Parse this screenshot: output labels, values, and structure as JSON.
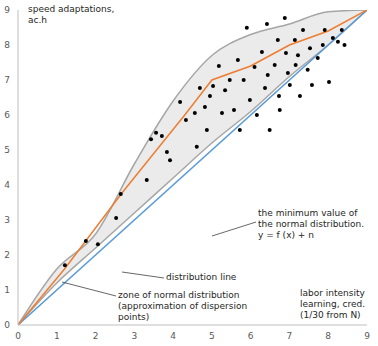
{
  "chart_data": {
    "type": "scatter",
    "y_label": "speed adaptations, ac.h",
    "x_label": "labor intensity learning, cred. (1/30 from N)",
    "xlim": [
      0,
      9
    ],
    "ylim": [
      0,
      9
    ],
    "xticks": [
      0,
      1,
      2,
      3,
      4,
      5,
      6,
      7,
      8,
      9
    ],
    "yticks": [
      0,
      1,
      2,
      3,
      4,
      5,
      6,
      7,
      8,
      9
    ],
    "grid": false,
    "annotations": [
      "the minimum value of the normal distribution. y = f (x) + n",
      "distribution line",
      "zone of normal distribution (approximation of dispersion points)"
    ],
    "series": [
      {
        "type": "area",
        "color": "#a6a6a6",
        "x": [
          0,
          1,
          2,
          3,
          4,
          5,
          6,
          7,
          8,
          9
        ],
        "low": [
          0,
          1.2,
          2.2,
          3.2,
          4.2,
          5.2,
          6.1,
          7.1,
          8.0,
          9
        ],
        "values": [
          0,
          1.6,
          2.6,
          4.6,
          6.4,
          7.7,
          8.3,
          8.6,
          8.95,
          9
        ]
      },
      {
        "type": "line",
        "color": "#5b9bd5",
        "x": [
          0,
          9
        ],
        "values": [
          0,
          9
        ]
      },
      {
        "type": "line",
        "color": "#ed7d31",
        "x": [
          0,
          1.2,
          2.7,
          3.5,
          4.3,
          5.0,
          6.0,
          7.0,
          8.0,
          9
        ],
        "values": [
          0,
          1.6,
          3.8,
          4.9,
          6.0,
          7.0,
          7.4,
          8.0,
          8.4,
          9
        ]
      },
      {
        "type": "scatter",
        "color": "#000000",
        "marker": "circle",
        "x": [
          1.21,
          1.75,
          2.06,
          2.53,
          2.65,
          3.32,
          3.43,
          3.56,
          3.71,
          3.84,
          3.92,
          4.18,
          4.33,
          4.56,
          4.61,
          4.69,
          4.82,
          4.87,
          4.95,
          5.03,
          5.18,
          5.26,
          5.34,
          5.46,
          5.57,
          5.67,
          5.72,
          5.82,
          5.9,
          5.98,
          6.1,
          6.16,
          6.29,
          6.37,
          6.42,
          6.44,
          6.49,
          6.62,
          6.7,
          6.73,
          6.75,
          6.88,
          6.91,
          6.96,
          7.01,
          7.14,
          7.16,
          7.22,
          7.27,
          7.35,
          7.47,
          7.53,
          7.58,
          7.73,
          7.86,
          7.91,
          8.02,
          8.12,
          8.25,
          8.35,
          8.42
        ],
        "values": [
          1.71,
          2.4,
          2.31,
          3.06,
          3.74,
          4.14,
          5.31,
          5.49,
          5.4,
          4.94,
          4.71,
          6.37,
          5.86,
          6.06,
          5.09,
          6.77,
          6.23,
          5.57,
          6.54,
          6.83,
          7.4,
          6.06,
          6.71,
          7.0,
          6.14,
          7.57,
          5.57,
          7.0,
          8.49,
          6.43,
          7.37,
          6.0,
          7.8,
          6.77,
          8.6,
          7.14,
          5.57,
          7.43,
          8.14,
          6.54,
          6.14,
          8.77,
          7.77,
          7.2,
          6.86,
          8.14,
          7.43,
          7.71,
          6.54,
          8.43,
          7.29,
          7.91,
          6.86,
          7.63,
          8.0,
          8.43,
          6.94,
          8.2,
          8.09,
          8.43,
          8.0
        ]
      }
    ]
  }
}
